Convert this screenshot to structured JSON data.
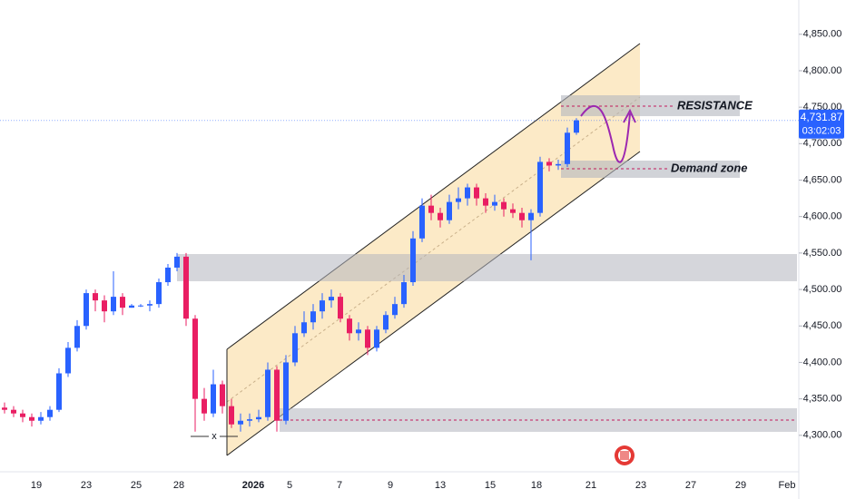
{
  "chart_data": {
    "type": "candlestick",
    "ylim": [
      4250,
      4897
    ],
    "yticks": [
      {
        "value": 4300,
        "label": "4,300.00"
      },
      {
        "value": 4350,
        "label": "4,350.00"
      },
      {
        "value": 4400,
        "label": "4,400.00"
      },
      {
        "value": 4450,
        "label": "4,450.00"
      },
      {
        "value": 4500,
        "label": "4,500.00"
      },
      {
        "value": 4550,
        "label": "4,550.00"
      },
      {
        "value": 4600,
        "label": "4,600.00"
      },
      {
        "value": 4650,
        "label": "4,650.00"
      },
      {
        "value": 4700,
        "label": "4,700.00"
      },
      {
        "value": 4750,
        "label": "4,750.00"
      },
      {
        "value": 4800,
        "label": "4,800.00"
      },
      {
        "value": 4850,
        "label": "4,850.00"
      }
    ],
    "xtick_labels": [
      "19",
      "23",
      "25",
      "28",
      "2026",
      "5",
      "7",
      "9",
      "13",
      "15",
      "18",
      "21",
      "23",
      "27",
      "29",
      "Feb"
    ],
    "up_color": "#2962ff",
    "down_color": "#e91e63",
    "last_price": {
      "value": 4731.87,
      "label": "4,731.87"
    },
    "countdown": "03:02:03",
    "annotations": {
      "resistance": "RESISTANCE",
      "demand": "Demand zone",
      "marker": "x"
    },
    "ohlc": [
      [
        4338,
        4345,
        4330,
        4335
      ],
      [
        4335,
        4340,
        4325,
        4330
      ],
      [
        4330,
        4335,
        4318,
        4325
      ],
      [
        4325,
        4330,
        4312,
        4320
      ],
      [
        4320,
        4332,
        4315,
        4325
      ],
      [
        4325,
        4340,
        4320,
        4335
      ],
      [
        4335,
        4392,
        4332,
        4385
      ],
      [
        4385,
        4428,
        4380,
        4420
      ],
      [
        4420,
        4458,
        4415,
        4450
      ],
      [
        4450,
        4500,
        4445,
        4495
      ],
      [
        4495,
        4500,
        4470,
        4485
      ],
      [
        4485,
        4492,
        4455,
        4470
      ],
      [
        4470,
        4525,
        4465,
        4490
      ],
      [
        4490,
        4495,
        4465,
        4475
      ],
      [
        4475,
        4480,
        4475,
        4478
      ],
      [
        4478,
        4480,
        4476,
        4478
      ],
      [
        4478,
        4485,
        4470,
        4480
      ],
      [
        4480,
        4515,
        4475,
        4510
      ],
      [
        4510,
        4535,
        4505,
        4530
      ],
      [
        4530,
        4550,
        4525,
        4545
      ],
      [
        4545,
        4550,
        4450,
        4460
      ],
      [
        4460,
        4465,
        4305,
        4350
      ],
      [
        4350,
        4365,
        4320,
        4330
      ],
      [
        4330,
        4390,
        4325,
        4370
      ],
      [
        4370,
        4375,
        4330,
        4340
      ],
      [
        4340,
        4350,
        4310,
        4315
      ],
      [
        4315,
        4330,
        4305,
        4320
      ],
      [
        4320,
        4330,
        4312,
        4322
      ],
      [
        4322,
        4335,
        4318,
        4325
      ],
      [
        4325,
        4400,
        4320,
        4390
      ],
      [
        4390,
        4395,
        4305,
        4320
      ],
      [
        4320,
        4410,
        4315,
        4400
      ],
      [
        4400,
        4450,
        4395,
        4440
      ],
      [
        4440,
        4470,
        4435,
        4455
      ],
      [
        4455,
        4480,
        4445,
        4470
      ],
      [
        4470,
        4495,
        4460,
        4485
      ],
      [
        4485,
        4500,
        4475,
        4490
      ],
      [
        4490,
        4495,
        4455,
        4460
      ],
      [
        4460,
        4465,
        4430,
        4440
      ],
      [
        4440,
        4455,
        4430,
        4445
      ],
      [
        4445,
        4450,
        4410,
        4420
      ],
      [
        4420,
        4450,
        4415,
        4445
      ],
      [
        4445,
        4470,
        4440,
        4465
      ],
      [
        4465,
        4490,
        4460,
        4480
      ],
      [
        4480,
        4520,
        4475,
        4510
      ],
      [
        4510,
        4580,
        4505,
        4570
      ],
      [
        4570,
        4625,
        4565,
        4615
      ],
      [
        4615,
        4630,
        4595,
        4605
      ],
      [
        4605,
        4612,
        4585,
        4595
      ],
      [
        4595,
        4630,
        4590,
        4620
      ],
      [
        4620,
        4640,
        4610,
        4625
      ],
      [
        4625,
        4645,
        4615,
        4640
      ],
      [
        4640,
        4645,
        4615,
        4625
      ],
      [
        4625,
        4632,
        4605,
        4615
      ],
      [
        4615,
        4630,
        4608,
        4620
      ],
      [
        4620,
        4625,
        4600,
        4610
      ],
      [
        4610,
        4618,
        4598,
        4605
      ],
      [
        4605,
        4612,
        4585,
        4595
      ],
      [
        4595,
        4610,
        4540,
        4605
      ],
      [
        4605,
        4682,
        4600,
        4675
      ],
      [
        4675,
        4680,
        4662,
        4670
      ],
      [
        4670,
        4678,
        4664,
        4672
      ],
      [
        4672,
        4722,
        4668,
        4715
      ],
      [
        4715,
        4735,
        4712,
        4732
      ]
    ]
  }
}
